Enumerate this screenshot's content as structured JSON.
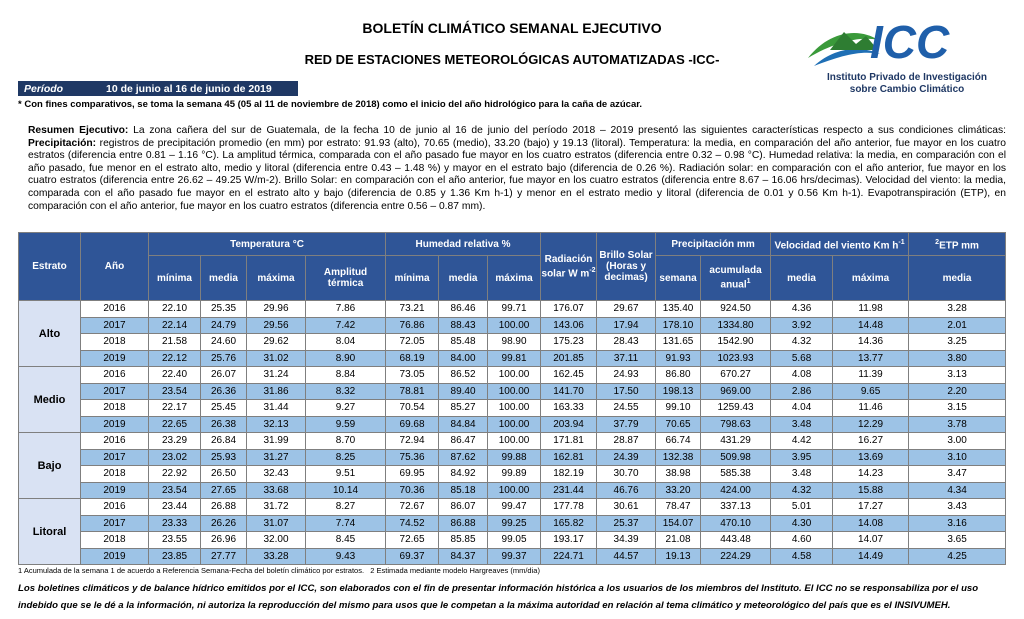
{
  "header": {
    "title": "BOLETÍN CLIMÁTICO SEMANAL EJECUTIVO",
    "subtitle": "RED DE ESTACIONES METEOROLÓGICAS AUTOMATIZADAS -ICC-"
  },
  "logo": {
    "text": "ICC",
    "line1": "Instituto Privado de Investigación",
    "line2": "sobre Cambio Climático"
  },
  "period": {
    "label": "Período",
    "value": "10 de junio al 16 de junio de 2019"
  },
  "note": "* Con fines comparativos, se toma la semana 45 (05 al 11 de noviembre de 2018) como el inicio del año hidrológico para la caña de azúcar.",
  "summary": {
    "lead": "Resumen Ejecutivo:",
    "intro": " La zona cañera del sur de Guatemala, de la fecha 10 de junio al 16 de junio del período 2018 – 2019 presentó las siguientes características respecto a sus condiciones climáticas: ",
    "precip_label": "Precipitación:",
    "body": " registros de precipitación promedio (en mm) por estrato: 91.93 (alto), 70.65 (medio), 33.20 (bajo) y 19.13 (litoral). Temperatura: la media, en comparación del año anterior, fue mayor en los cuatro estratos (diferencia entre 0.81 – 1.16 °C). La amplitud térmica, comparada con el año pasado fue mayor en los cuatro estratos (diferencia entre 0.32 – 0.98 °C). Humedad relativa: la media, en comparación con el año pasado, fue menor en el estrato alto, medio y litoral (diferencia entre 0.43 – 1.48 %) y mayor en el estrato bajo (diferencia de 0.26 %). Radiación solar: en comparación con el año anterior, fue mayor en los cuatro estratos (diferencia entre 26.62 – 49.25 W/m-2). Brillo Solar: en comparación con el año anterior, fue mayor en los cuatro estratos (diferencia entre 8.67 – 16.06 hrs/decimas). Velocidad del viento: la media, comparada con el año pasado fue mayor en el estrato alto y bajo (diferencia de 0.85 y 1.36 Km h-1) y menor en el estrato medio y litoral (diferencia de 0.01 y 0.56 Km h-1). Evapotranspiración (ETP), en comparación con el año anterior, fue mayor en los cuatro estratos (diferencia entre 0.56 – 0.87 mm)."
  },
  "table": {
    "header": {
      "estrato": "Estrato",
      "ano": "Año",
      "temperatura": "Temperatura °C",
      "humedad": "Humedad relativa %",
      "radiacion": "Radiación solar W m",
      "radiacion_sup": "-2",
      "brillo": "Brillo Solar (Horas y decimas)",
      "precipitacion": "Precipitación mm",
      "viento": "Velocidad del viento Km h",
      "viento_sup": "-1",
      "etp_sup": "2",
      "etp": "ETP mm",
      "acumulada_sup": "1"
    },
    "subheaders": [
      "mínima",
      "media",
      "máxima",
      "Amplitud térmica",
      "mínima",
      "media",
      "máxima",
      "semana",
      "acumulada anual",
      "media",
      "máxima",
      "media"
    ],
    "stations": [
      {
        "name": "Alto",
        "rows": [
          {
            "year": "2016",
            "values": [
              "22.10",
              "25.35",
              "29.96",
              "7.86",
              "73.21",
              "86.46",
              "99.71",
              "176.07",
              "29.67",
              "135.40",
              "924.50",
              "4.36",
              "11.98",
              "3.28"
            ]
          },
          {
            "year": "2017",
            "values": [
              "22.14",
              "24.79",
              "29.56",
              "7.42",
              "76.86",
              "88.43",
              "100.00",
              "143.06",
              "17.94",
              "178.10",
              "1334.80",
              "3.92",
              "14.48",
              "2.01"
            ]
          },
          {
            "year": "2018",
            "values": [
              "21.58",
              "24.60",
              "29.62",
              "8.04",
              "72.05",
              "85.48",
              "98.90",
              "175.23",
              "28.43",
              "131.65",
              "1542.90",
              "4.32",
              "14.36",
              "3.25"
            ]
          },
          {
            "year": "2019",
            "values": [
              "22.12",
              "25.76",
              "31.02",
              "8.90",
              "68.19",
              "84.00",
              "99.81",
              "201.85",
              "37.11",
              "91.93",
              "1023.93",
              "5.68",
              "13.77",
              "3.80"
            ]
          }
        ]
      },
      {
        "name": "Medio",
        "rows": [
          {
            "year": "2016",
            "values": [
              "22.40",
              "26.07",
              "31.24",
              "8.84",
              "73.05",
              "86.52",
              "100.00",
              "162.45",
              "24.93",
              "86.80",
              "670.27",
              "4.08",
              "11.39",
              "3.13"
            ]
          },
          {
            "year": "2017",
            "values": [
              "23.54",
              "26.36",
              "31.86",
              "8.32",
              "78.81",
              "89.40",
              "100.00",
              "141.70",
              "17.50",
              "198.13",
              "969.00",
              "2.86",
              "9.65",
              "2.20"
            ]
          },
          {
            "year": "2018",
            "values": [
              "22.17",
              "25.45",
              "31.44",
              "9.27",
              "70.54",
              "85.27",
              "100.00",
              "163.33",
              "24.55",
              "99.10",
              "1259.43",
              "4.04",
              "11.46",
              "3.15"
            ]
          },
          {
            "year": "2019",
            "values": [
              "22.65",
              "26.38",
              "32.13",
              "9.59",
              "69.68",
              "84.84",
              "100.00",
              "203.94",
              "37.79",
              "70.65",
              "798.63",
              "3.48",
              "12.29",
              "3.78"
            ]
          }
        ]
      },
      {
        "name": "Bajo",
        "rows": [
          {
            "year": "2016",
            "values": [
              "23.29",
              "26.84",
              "31.99",
              "8.70",
              "72.94",
              "86.47",
              "100.00",
              "171.81",
              "28.87",
              "66.74",
              "431.29",
              "4.42",
              "16.27",
              "3.00"
            ]
          },
          {
            "year": "2017",
            "values": [
              "23.02",
              "25.93",
              "31.27",
              "8.25",
              "75.36",
              "87.62",
              "99.88",
              "162.81",
              "24.39",
              "132.38",
              "509.98",
              "3.95",
              "13.69",
              "3.10"
            ]
          },
          {
            "year": "2018",
            "values": [
              "22.92",
              "26.50",
              "32.43",
              "9.51",
              "69.95",
              "84.92",
              "99.89",
              "182.19",
              "30.70",
              "38.98",
              "585.38",
              "3.48",
              "14.23",
              "3.47"
            ]
          },
          {
            "year": "2019",
            "values": [
              "23.54",
              "27.65",
              "33.68",
              "10.14",
              "70.36",
              "85.18",
              "100.00",
              "231.44",
              "46.76",
              "33.20",
              "424.00",
              "4.32",
              "15.88",
              "4.34"
            ]
          }
        ]
      },
      {
        "name": "Litoral",
        "rows": [
          {
            "year": "2016",
            "values": [
              "23.44",
              "26.88",
              "31.72",
              "8.27",
              "72.67",
              "86.07",
              "99.47",
              "177.78",
              "30.61",
              "78.47",
              "337.13",
              "5.01",
              "17.27",
              "3.43"
            ]
          },
          {
            "year": "2017",
            "values": [
              "23.33",
              "26.26",
              "31.07",
              "7.74",
              "74.52",
              "86.88",
              "99.25",
              "165.82",
              "25.37",
              "154.07",
              "470.10",
              "4.30",
              "14.08",
              "3.16"
            ]
          },
          {
            "year": "2018",
            "values": [
              "23.55",
              "26.96",
              "32.00",
              "8.45",
              "72.65",
              "85.85",
              "99.05",
              "193.17",
              "34.39",
              "21.08",
              "443.48",
              "4.60",
              "14.07",
              "3.65"
            ]
          },
          {
            "year": "2019",
            "values": [
              "23.85",
              "27.77",
              "33.28",
              "9.43",
              "69.37",
              "84.37",
              "99.37",
              "224.71",
              "44.57",
              "19.13",
              "224.29",
              "4.58",
              "14.49",
              "4.25"
            ]
          }
        ]
      }
    ]
  },
  "footnote": "1 Acumulada de la semana 1 de acuerdo a Referencia Semana-Fecha del boletín climático por estratos.   2 Estimada mediante modelo Hargreaves (mm/dia)",
  "disclaimer": "Los boletines climáticos y de balance hídrico emitidos por el ICC, son elaborados con el fin de presentar información histórica a los usuarios de los miembros del Instituto. El ICC no se responsabiliza por el uso indebido que se le dé a la información, ni autoriza la reproducción del mismo para usos que le competan a la máxima autoridad en relación al tema climático y meteorológico del país que es el INSIVUMEH."
}
